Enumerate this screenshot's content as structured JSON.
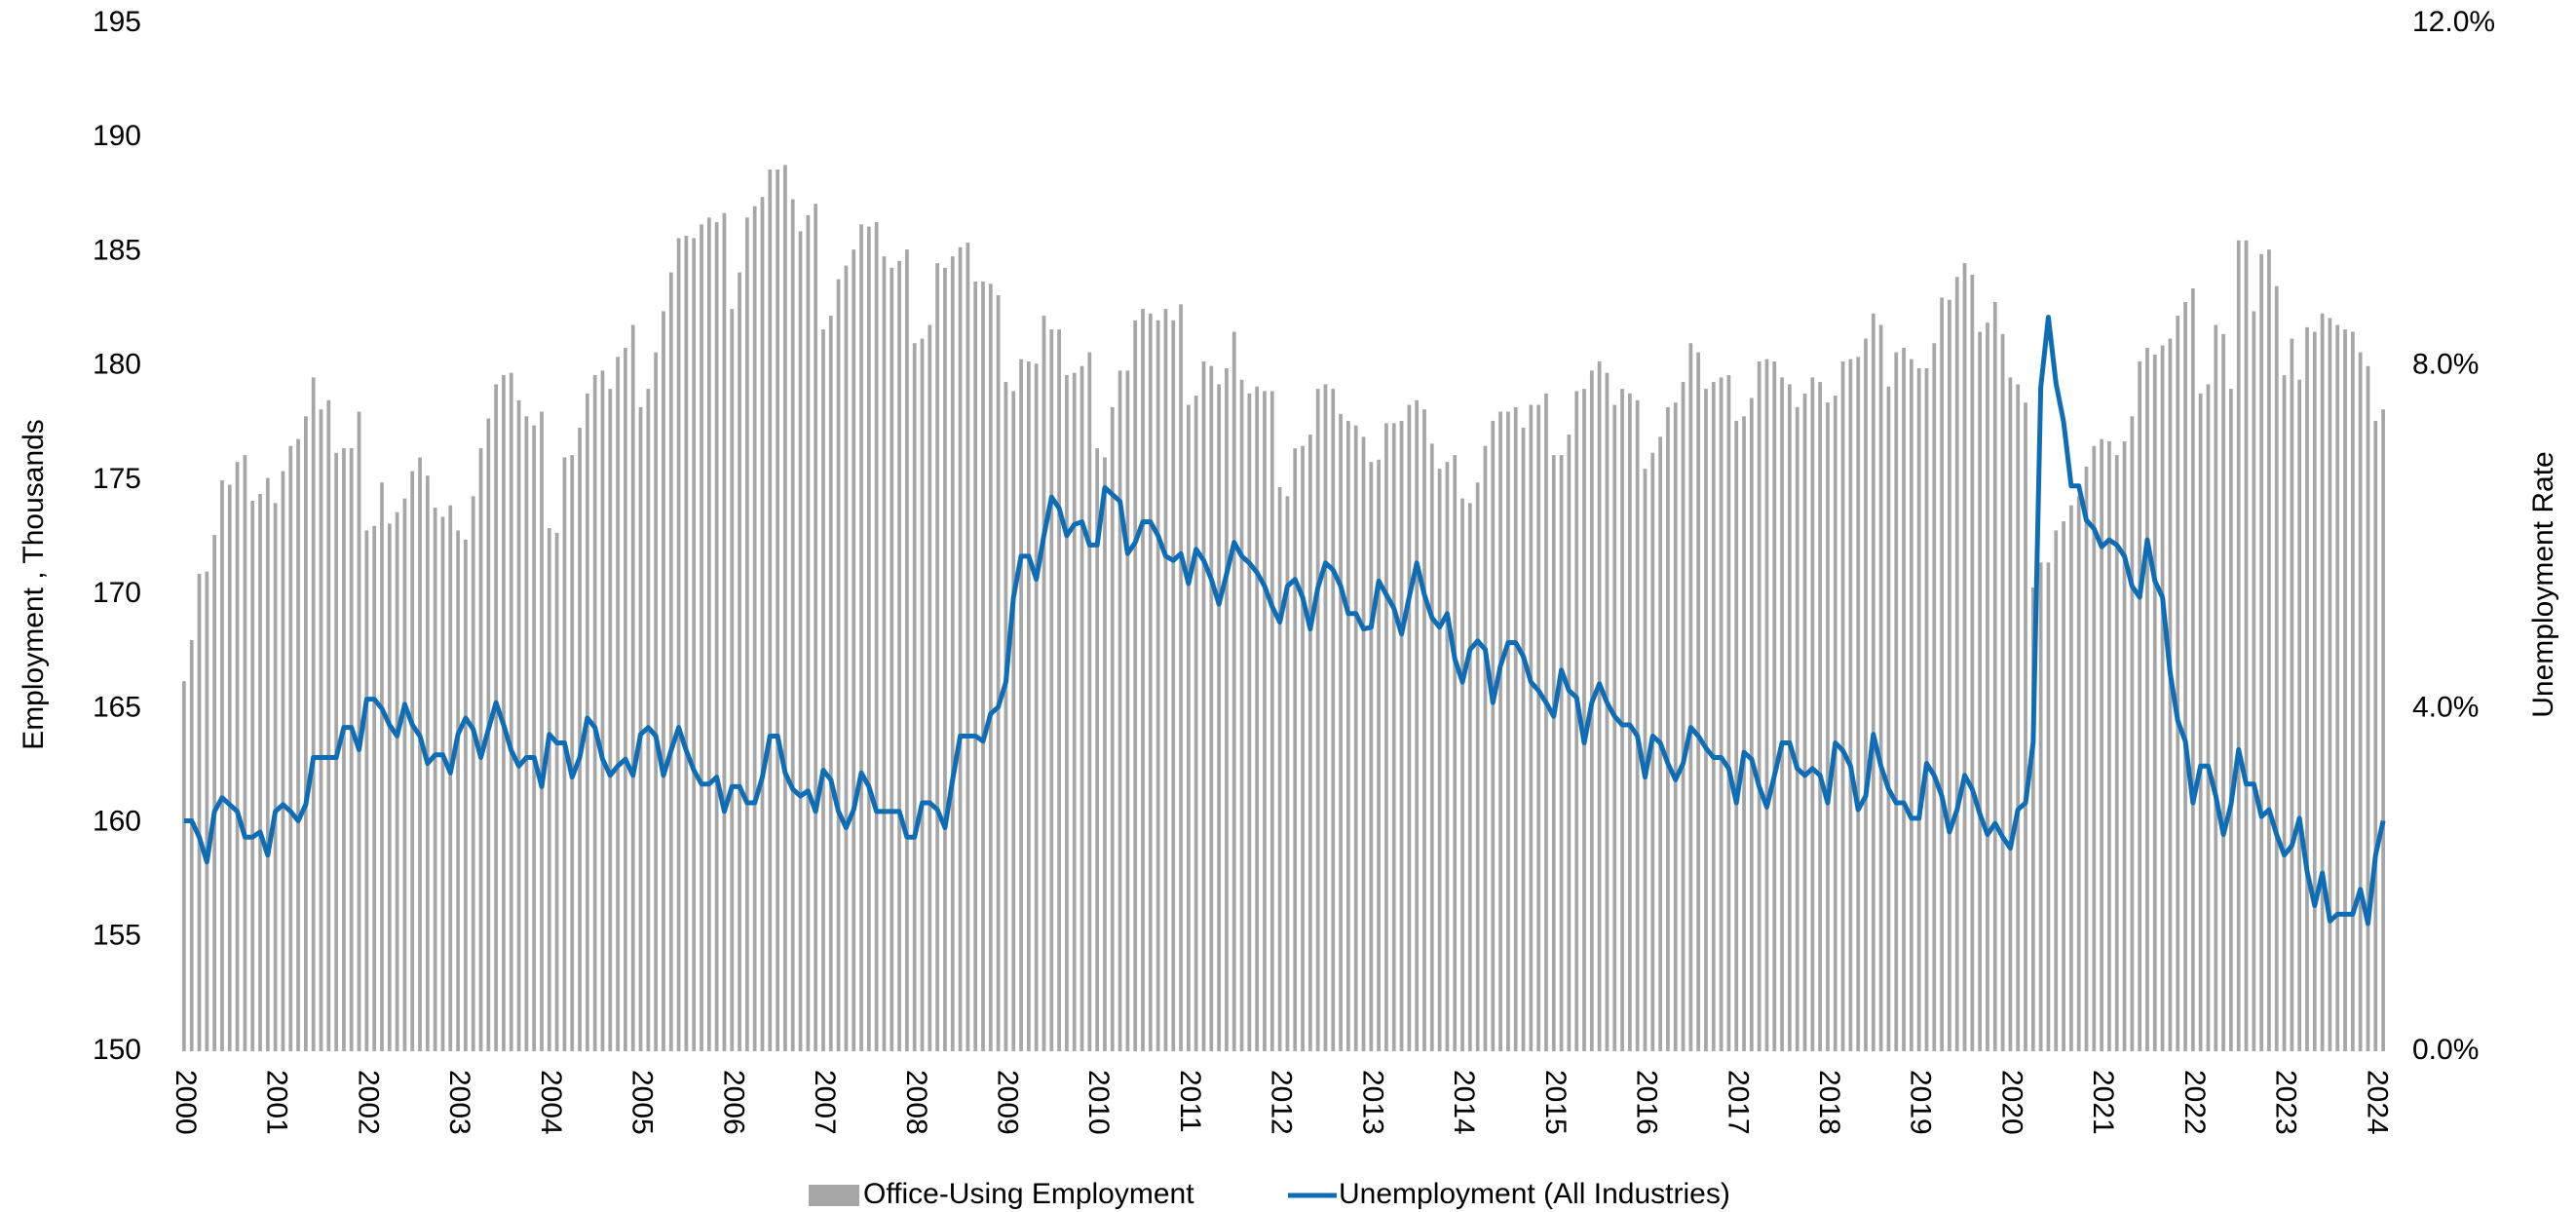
{
  "chart_data": {
    "type": "bar-line",
    "y_label": "Employment , Thousands",
    "y2_label": "Unemployment Rate",
    "categories": [
      "2000",
      null,
      null,
      null,
      null,
      null,
      null,
      null,
      null,
      null,
      null,
      null,
      "2001",
      null,
      null,
      null,
      null,
      null,
      null,
      null,
      null,
      null,
      null,
      null,
      "2002",
      null,
      null,
      null,
      null,
      null,
      null,
      null,
      null,
      null,
      null,
      null,
      "2003",
      null,
      null,
      null,
      null,
      null,
      null,
      null,
      null,
      null,
      null,
      null,
      "2004",
      null,
      null,
      null,
      null,
      null,
      null,
      null,
      null,
      null,
      null,
      null,
      "2005",
      null,
      null,
      null,
      null,
      null,
      null,
      null,
      null,
      null,
      null,
      null,
      "2006",
      null,
      null,
      null,
      null,
      null,
      null,
      null,
      null,
      null,
      null,
      null,
      "2007",
      null,
      null,
      null,
      null,
      null,
      null,
      null,
      null,
      null,
      null,
      null,
      "2008",
      null,
      null,
      null,
      null,
      null,
      null,
      null,
      null,
      null,
      null,
      null,
      "2009",
      null,
      null,
      null,
      null,
      null,
      null,
      null,
      null,
      null,
      null,
      null,
      "2010",
      null,
      null,
      null,
      null,
      null,
      null,
      null,
      null,
      null,
      null,
      null,
      "2011",
      null,
      null,
      null,
      null,
      null,
      null,
      null,
      null,
      null,
      null,
      null,
      "2012",
      null,
      null,
      null,
      null,
      null,
      null,
      null,
      null,
      null,
      null,
      null,
      "2013",
      null,
      null,
      null,
      null,
      null,
      null,
      null,
      null,
      null,
      null,
      null,
      "2014",
      null,
      null,
      null,
      null,
      null,
      null,
      null,
      null,
      null,
      null,
      null,
      "2015",
      null,
      null,
      null,
      null,
      null,
      null,
      null,
      null,
      null,
      null,
      null,
      "2016",
      null,
      null,
      null,
      null,
      null,
      null,
      null,
      null,
      null,
      null,
      null,
      "2017",
      null,
      null,
      null,
      null,
      null,
      null,
      null,
      null,
      null,
      null,
      null,
      "2018",
      null,
      null,
      null,
      null,
      null,
      null,
      null,
      null,
      null,
      null,
      null,
      "2019",
      null,
      null,
      null,
      null,
      null,
      null,
      null,
      null,
      null,
      null,
      null,
      "2020",
      null,
      null,
      null,
      null,
      null,
      null,
      null,
      null,
      null,
      null,
      null,
      "2021",
      null,
      null,
      null,
      null,
      null,
      null,
      null,
      null,
      null,
      null,
      null,
      "2022",
      null,
      null,
      null,
      null,
      null,
      null,
      null,
      null,
      null,
      null,
      null,
      "2023",
      null,
      null,
      null,
      null,
      null,
      null,
      null,
      null,
      null,
      null,
      null,
      "2024",
      null
    ],
    "series": [
      {
        "name": "Office-Using Employment",
        "type": "bar",
        "color": "#a6a6a6",
        "values": [
          166.2,
          168,
          170.9,
          171,
          172.6,
          175,
          174.8,
          175.8,
          176.1,
          174.1,
          174.4,
          175.1,
          174,
          175.4,
          176.5,
          176.8,
          177.8,
          179.5,
          178.1,
          178.5,
          176.2,
          176.4,
          176.4,
          178,
          172.8,
          173,
          174.9,
          173.1,
          173.6,
          174.2,
          175.4,
          176,
          175.2,
          173.8,
          173.4,
          173.9,
          172.8,
          172.4,
          174.3,
          176.4,
          177.7,
          179.2,
          179.6,
          179.7,
          178.5,
          177.8,
          177.4,
          178,
          172.9,
          172.7,
          176,
          176.1,
          177.3,
          178.8,
          179.6,
          179.8,
          179,
          180.4,
          180.8,
          181.8,
          178.2,
          179,
          180.6,
          182.4,
          184.1,
          185.6,
          185.7,
          185.6,
          186.2,
          186.5,
          186.3,
          186.7,
          182.5,
          184.1,
          186.5,
          187,
          187.4,
          188.6,
          188.6,
          188.8,
          187.3,
          185.9,
          186.6,
          187.1,
          181.6,
          182.2,
          183.8,
          184.4,
          185.1,
          186.2,
          186.1,
          186.3,
          184.8,
          184.3,
          184.6,
          185.1,
          181,
          181.2,
          181.8,
          184.5,
          184.3,
          184.8,
          185.2,
          185.4,
          183.7,
          183.7,
          183.6,
          183.1,
          179.3,
          178.9,
          180.3,
          180.2,
          180.1,
          182.2,
          181.6,
          181.6,
          179.6,
          179.7,
          180,
          180.6,
          176.4,
          176,
          178.2,
          179.8,
          179.8,
          182,
          182.5,
          182.3,
          182,
          182.5,
          182,
          182.7,
          178.3,
          178.7,
          180.2,
          180,
          179.2,
          179.9,
          181.5,
          179.4,
          178.8,
          179.1,
          178.9,
          178.9,
          174.7,
          174.3,
          176.4,
          176.5,
          177,
          179,
          179.2,
          179,
          177.9,
          177.6,
          177.4,
          176.9,
          175.8,
          175.9,
          177.5,
          177.5,
          177.6,
          178.3,
          178.5,
          178.1,
          176.6,
          175.5,
          175.8,
          176.1,
          174.2,
          174,
          174.9,
          176.5,
          177.6,
          178,
          178,
          178.2,
          177.3,
          178.3,
          178.3,
          178.8,
          176.1,
          176.1,
          177,
          178.9,
          179,
          179.8,
          180.2,
          179.7,
          178.3,
          179,
          178.8,
          178.5,
          175.5,
          176.2,
          176.9,
          178.2,
          178.4,
          179.3,
          181,
          180.6,
          179,
          179.3,
          179.5,
          179.6,
          177.6,
          177.8,
          178.6,
          180.2,
          180.3,
          180.2,
          179.5,
          179.2,
          178.2,
          178.8,
          179.5,
          179.3,
          178.4,
          178.7,
          180.2,
          180.3,
          180.4,
          181.2,
          182.3,
          181.8,
          179.1,
          180.6,
          180.8,
          180.3,
          179.9,
          179.9,
          181,
          183,
          182.9,
          183.9,
          184.5,
          184,
          181.5,
          181.9,
          182.8,
          181.4,
          179.5,
          179.2,
          178.4,
          170.3,
          171.4,
          171.4,
          172.8,
          173.2,
          173.9,
          174.3,
          175.6,
          176.5,
          176.8,
          176.7,
          176.1,
          176.7,
          177.8,
          180.2,
          180.8,
          180.5,
          180.9,
          181.2,
          182.2,
          182.8,
          183.4,
          178.8,
          179.2,
          181.8,
          181.4,
          179,
          185.5,
          185.5,
          182.4,
          184.9,
          185.1,
          183.5,
          179.6,
          181.2,
          179.4,
          181.7,
          181.5,
          182.3,
          182.1,
          181.8,
          181.6,
          181.5,
          180.6,
          180,
          177.6,
          178.1
        ]
      },
      {
        "name": "Unemployment (All Industries)",
        "type": "line",
        "axis": "y2",
        "color": "#0f6db5",
        "values": [
          2.69,
          2.69,
          2.5,
          2.21,
          2.8,
          2.96,
          2.88,
          2.8,
          2.5,
          2.5,
          2.56,
          2.29,
          2.8,
          2.88,
          2.8,
          2.69,
          2.88,
          3.43,
          3.43,
          3.43,
          3.43,
          3.78,
          3.78,
          3.52,
          4.11,
          4.11,
          4.0,
          3.81,
          3.68,
          4.05,
          3.81,
          3.68,
          3.36,
          3.46,
          3.46,
          3.25,
          3.7,
          3.89,
          3.76,
          3.43,
          3.76,
          4.07,
          3.81,
          3.51,
          3.33,
          3.43,
          3.43,
          3.09,
          3.7,
          3.6,
          3.6,
          3.2,
          3.43,
          3.89,
          3.78,
          3.41,
          3.22,
          3.33,
          3.41,
          3.22,
          3.7,
          3.78,
          3.68,
          3.22,
          3.51,
          3.78,
          3.51,
          3.28,
          3.12,
          3.12,
          3.2,
          2.8,
          3.09,
          3.09,
          2.9,
          2.9,
          3.2,
          3.68,
          3.68,
          3.25,
          3.06,
          2.98,
          3.04,
          2.8,
          3.28,
          3.17,
          2.8,
          2.61,
          2.82,
          3.25,
          3.09,
          2.8,
          2.8,
          2.8,
          2.8,
          2.5,
          2.5,
          2.9,
          2.9,
          2.82,
          2.61,
          3.17,
          3.68,
          3.68,
          3.68,
          3.62,
          3.94,
          4.02,
          4.31,
          5.3,
          5.78,
          5.78,
          5.51,
          6.02,
          6.47,
          6.34,
          6.02,
          6.15,
          6.18,
          5.91,
          5.91,
          6.58,
          6.5,
          6.42,
          5.81,
          5.94,
          6.18,
          6.18,
          6.02,
          5.78,
          5.73,
          5.81,
          5.46,
          5.86,
          5.73,
          5.51,
          5.22,
          5.57,
          5.94,
          5.78,
          5.7,
          5.59,
          5.43,
          5.19,
          5.01,
          5.43,
          5.51,
          5.3,
          4.93,
          5.41,
          5.7,
          5.62,
          5.43,
          5.11,
          5.11,
          4.93,
          4.95,
          5.49,
          5.33,
          5.17,
          4.87,
          5.3,
          5.7,
          5.33,
          5.06,
          4.95,
          5.11,
          4.58,
          4.31,
          4.69,
          4.79,
          4.69,
          4.07,
          4.5,
          4.77,
          4.77,
          4.61,
          4.31,
          4.21,
          4.07,
          3.91,
          4.45,
          4.21,
          4.13,
          3.6,
          4.07,
          4.29,
          4.07,
          3.91,
          3.81,
          3.81,
          3.68,
          3.2,
          3.68,
          3.6,
          3.36,
          3.17,
          3.36,
          3.78,
          3.68,
          3.54,
          3.43,
          3.43,
          3.3,
          2.9,
          3.49,
          3.41,
          3.09,
          2.85,
          3.22,
          3.6,
          3.6,
          3.3,
          3.22,
          3.3,
          3.22,
          2.9,
          3.6,
          3.51,
          3.33,
          2.82,
          2.98,
          3.7,
          3.33,
          3.06,
          2.9,
          2.9,
          2.72,
          2.72,
          3.36,
          3.22,
          2.98,
          2.56,
          2.82,
          3.22,
          3.06,
          2.77,
          2.53,
          2.66,
          2.5,
          2.37,
          2.82,
          2.9,
          3.6,
          7.75,
          8.57,
          7.8,
          7.35,
          6.6,
          6.6,
          6.2,
          6.1,
          5.89,
          5.97,
          5.91,
          5.78,
          5.43,
          5.3,
          5.97,
          5.49,
          5.3,
          4.42,
          3.86,
          3.62,
          2.9,
          3.33,
          3.33,
          2.98,
          2.53,
          2.88,
          3.52,
          3.12,
          3.12,
          2.74,
          2.82,
          2.53,
          2.29,
          2.4,
          2.72,
          2.1,
          1.7,
          2.08,
          1.52,
          1.6,
          1.6,
          1.6,
          1.89,
          1.49,
          2.29,
          2.69
        ]
      }
    ],
    "ylim": [
      150,
      195
    ],
    "yticks": [
      150,
      155,
      160,
      165,
      170,
      175,
      180,
      185,
      190,
      195
    ],
    "y2lim": [
      0,
      12
    ],
    "y2ticks": [
      {
        "value": 0,
        "label": "0.0%"
      },
      {
        "value": 4,
        "label": "4.0%"
      },
      {
        "value": 8,
        "label": "8.0%"
      },
      {
        "value": 12,
        "label": "12.0%"
      }
    ],
    "grid": false,
    "legend": "bottom"
  }
}
